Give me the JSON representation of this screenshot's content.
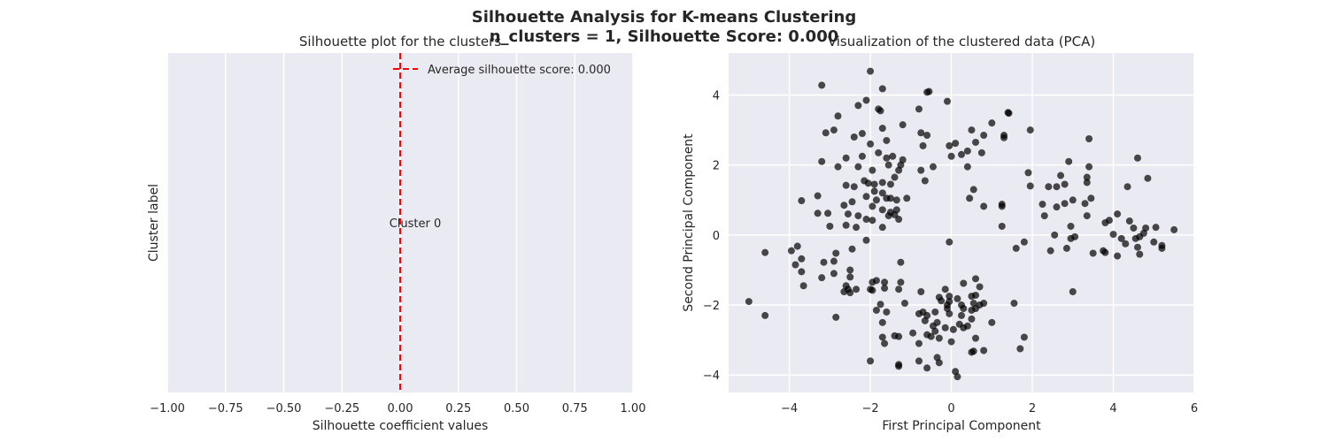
{
  "suptitle": {
    "line1": "Silhouette Analysis for K-means Clustering",
    "line2": "n_clusters = 1, Silhouette Score: 0.000"
  },
  "colors": {
    "plot_background": "#eaeaf2",
    "grid": "#ffffff",
    "average_line": "#ff0000",
    "points": "#000000"
  },
  "chart_data": [
    {
      "type": "bar",
      "title": "Silhouette plot for the clusters",
      "xlabel": "Silhouette coefficient values",
      "ylabel": "Cluster label",
      "xlim": [
        -1.0,
        1.0
      ],
      "xticks": [
        -1.0,
        -0.75,
        -0.5,
        -0.25,
        0.0,
        0.25,
        0.5,
        0.75,
        1.0
      ],
      "xtick_labels": [
        "−1.00",
        "−0.75",
        "−0.50",
        "−0.25",
        "0.00",
        "0.25",
        "0.50",
        "0.75",
        "1.00"
      ],
      "yticks": [],
      "grid": true,
      "clusters": [
        {
          "label": "Cluster 0",
          "silhouette_values": 0.0
        }
      ],
      "average_line": {
        "value": 0.0,
        "style": "dashed",
        "legend_label": "Average silhouette score: 0.000"
      },
      "legend_position": "top-right"
    },
    {
      "type": "scatter",
      "title": "Visualization of the clustered data (PCA)",
      "xlabel": "First Principal Component",
      "ylabel": "Second Principal Component",
      "xlim": [
        -5.5,
        6.0
      ],
      "ylim": [
        -4.5,
        5.2
      ],
      "xticks": [
        -4,
        -2,
        0,
        2,
        4,
        6
      ],
      "xtick_labels": [
        "−4",
        "−2",
        "0",
        "2",
        "4",
        "6"
      ],
      "yticks": [
        -4,
        -2,
        0,
        2,
        4
      ],
      "ytick_labels": [
        "−4",
        "−2",
        "0",
        "2",
        "4"
      ],
      "grid": true,
      "points": [
        [
          -3.2,
          4.28
        ],
        [
          -2.0,
          4.68
        ],
        [
          -1.7,
          4.18
        ],
        [
          -0.6,
          4.08
        ],
        [
          -0.55,
          4.1
        ],
        [
          -0.1,
          3.82
        ],
        [
          -2.1,
          3.85
        ],
        [
          -1.8,
          3.6
        ],
        [
          -1.75,
          3.55
        ],
        [
          -2.3,
          3.7
        ],
        [
          -2.8,
          3.4
        ],
        [
          -0.8,
          3.6
        ],
        [
          1.4,
          3.5
        ],
        [
          1.42,
          3.48
        ],
        [
          1.0,
          3.2
        ],
        [
          -1.2,
          3.15
        ],
        [
          -3.1,
          2.92
        ],
        [
          -2.9,
          3.0
        ],
        [
          -2.4,
          2.8
        ],
        [
          -2.2,
          2.9
        ],
        [
          -1.7,
          3.05
        ],
        [
          -0.75,
          2.92
        ],
        [
          -0.6,
          2.85
        ],
        [
          0.5,
          3.0
        ],
        [
          0.8,
          2.85
        ],
        [
          1.3,
          2.85
        ],
        [
          1.3,
          2.78
        ],
        [
          1.95,
          3.0
        ],
        [
          3.4,
          2.75
        ],
        [
          -2.0,
          2.6
        ],
        [
          -1.6,
          2.7
        ],
        [
          -0.7,
          2.55
        ],
        [
          -0.05,
          2.55
        ],
        [
          0.1,
          2.62
        ],
        [
          0.6,
          2.65
        ],
        [
          0.4,
          2.4
        ],
        [
          0.75,
          2.35
        ],
        [
          -3.2,
          2.1
        ],
        [
          -2.6,
          2.2
        ],
        [
          -2.2,
          2.25
        ],
        [
          -1.8,
          2.35
        ],
        [
          -1.6,
          2.2
        ],
        [
          -1.45,
          2.25
        ],
        [
          -1.2,
          2.15
        ],
        [
          0.0,
          2.25
        ],
        [
          0.25,
          2.3
        ],
        [
          4.6,
          2.2
        ],
        [
          -2.8,
          1.95
        ],
        [
          -2.3,
          1.95
        ],
        [
          -1.95,
          1.85
        ],
        [
          -1.55,
          2.0
        ],
        [
          -1.3,
          1.85
        ],
        [
          -1.4,
          1.65
        ],
        [
          -0.75,
          1.85
        ],
        [
          -0.45,
          1.95
        ],
        [
          0.4,
          1.95
        ],
        [
          2.9,
          2.1
        ],
        [
          3.4,
          1.95
        ],
        [
          1.9,
          1.78
        ],
        [
          2.7,
          1.7
        ],
        [
          3.35,
          1.65
        ],
        [
          4.85,
          1.62
        ],
        [
          -2.6,
          1.42
        ],
        [
          -2.4,
          1.38
        ],
        [
          -2.05,
          1.48
        ],
        [
          -1.9,
          1.45
        ],
        [
          -1.7,
          1.5
        ],
        [
          -1.5,
          1.45
        ],
        [
          -0.65,
          1.55
        ],
        [
          0.55,
          1.3
        ],
        [
          1.95,
          1.4
        ],
        [
          2.4,
          1.38
        ],
        [
          2.6,
          1.38
        ],
        [
          2.8,
          1.45
        ],
        [
          3.35,
          1.5
        ],
        [
          4.35,
          1.38
        ],
        [
          -3.3,
          1.12
        ],
        [
          -2.1,
          1.1
        ],
        [
          -1.85,
          1.0
        ],
        [
          -1.7,
          1.2
        ],
        [
          -1.6,
          1.05
        ],
        [
          -1.5,
          1.05
        ],
        [
          -1.35,
          1.0
        ],
        [
          -1.1,
          1.05
        ],
        [
          0.45,
          1.05
        ],
        [
          3.0,
          1.0
        ],
        [
          3.45,
          1.05
        ],
        [
          -3.7,
          0.98
        ],
        [
          -2.65,
          0.85
        ],
        [
          -2.45,
          0.95
        ],
        [
          -1.95,
          0.82
        ],
        [
          -1.7,
          0.72
        ],
        [
          -1.5,
          0.65
        ],
        [
          -1.35,
          0.72
        ],
        [
          0.8,
          0.82
        ],
        [
          1.25,
          0.82
        ],
        [
          1.25,
          0.88
        ],
        [
          2.25,
          0.88
        ],
        [
          2.6,
          0.8
        ],
        [
          2.8,
          0.9
        ],
        [
          3.3,
          0.9
        ],
        [
          -3.3,
          0.62
        ],
        [
          -3.05,
          0.62
        ],
        [
          -2.1,
          0.45
        ],
        [
          -1.95,
          0.42
        ],
        [
          -1.55,
          0.55
        ],
        [
          -1.4,
          0.58
        ],
        [
          -1.3,
          0.45
        ],
        [
          2.3,
          0.55
        ],
        [
          3.35,
          0.55
        ],
        [
          3.9,
          0.42
        ],
        [
          4.1,
          0.6
        ],
        [
          4.4,
          0.4
        ],
        [
          -3.0,
          0.25
        ],
        [
          -2.6,
          0.28
        ],
        [
          -2.35,
          0.22
        ],
        [
          -1.7,
          0.22
        ],
        [
          1.25,
          0.25
        ],
        [
          2.95,
          0.25
        ],
        [
          3.8,
          0.35
        ],
        [
          4.5,
          0.2
        ],
        [
          4.8,
          0.2
        ],
        [
          5.05,
          0.22
        ],
        [
          5.5,
          0.15
        ],
        [
          -2.1,
          -0.15
        ],
        [
          -0.05,
          -0.2
        ],
        [
          2.55,
          0.0
        ],
        [
          2.95,
          -0.1
        ],
        [
          3.05,
          -0.05
        ],
        [
          4.0,
          0.02
        ],
        [
          4.2,
          -0.1
        ],
        [
          4.3,
          -0.25
        ],
        [
          4.55,
          -0.1
        ],
        [
          4.65,
          -0.05
        ],
        [
          4.75,
          0.05
        ],
        [
          5.0,
          -0.2
        ],
        [
          5.2,
          -0.3
        ],
        [
          -2.45,
          -0.4
        ],
        [
          1.6,
          -0.38
        ],
        [
          1.8,
          -0.2
        ],
        [
          2.45,
          -0.45
        ],
        [
          2.85,
          -0.38
        ],
        [
          3.5,
          -0.52
        ],
        [
          3.75,
          -0.45
        ],
        [
          3.8,
          -0.5
        ],
        [
          4.1,
          -0.6
        ],
        [
          4.6,
          -0.35
        ],
        [
          4.65,
          -0.55
        ],
        [
          5.2,
          -0.38
        ],
        [
          -4.6,
          -0.5
        ],
        [
          -3.95,
          -0.45
        ],
        [
          -3.8,
          -0.32
        ],
        [
          -3.7,
          -0.68
        ],
        [
          -2.85,
          -0.52
        ],
        [
          -3.85,
          -0.85
        ],
        [
          -3.15,
          -0.78
        ],
        [
          -2.9,
          -0.75
        ],
        [
          -1.25,
          -0.78
        ],
        [
          -3.7,
          -1.05
        ],
        [
          -2.5,
          -1.0
        ],
        [
          -2.9,
          -1.1
        ],
        [
          -2.5,
          -1.2
        ],
        [
          -3.2,
          -1.22
        ],
        [
          -1.65,
          -1.35
        ],
        [
          -1.95,
          -1.35
        ],
        [
          -1.85,
          -1.3
        ],
        [
          -1.25,
          -1.35
        ],
        [
          -0.15,
          -1.55
        ],
        [
          0.3,
          -1.38
        ],
        [
          0.6,
          -1.25
        ],
        [
          -3.65,
          -1.45
        ],
        [
          -2.6,
          -1.45
        ],
        [
          -2.55,
          -1.55
        ],
        [
          -2.35,
          -1.55
        ],
        [
          -2.5,
          -1.65
        ],
        [
          -2.65,
          -1.62
        ],
        [
          -2.0,
          -1.55
        ],
        [
          -1.95,
          -1.58
        ],
        [
          -1.65,
          -1.52
        ],
        [
          -1.3,
          -1.55
        ],
        [
          -0.75,
          -1.62
        ],
        [
          0.5,
          -1.75
        ],
        [
          0.7,
          -1.48
        ],
        [
          0.6,
          -1.72
        ],
        [
          -0.05,
          -1.75
        ],
        [
          -0.3,
          -1.78
        ],
        [
          -0.25,
          -1.88
        ],
        [
          0.15,
          -1.82
        ],
        [
          0.25,
          -2.0
        ],
        [
          3.0,
          -1.62
        ],
        [
          -5.0,
          -1.9
        ],
        [
          -1.75,
          -1.98
        ],
        [
          -1.15,
          -1.95
        ],
        [
          -0.05,
          -1.9
        ],
        [
          -0.1,
          -2.0
        ],
        [
          0.5,
          -2.15
        ],
        [
          0.55,
          -1.95
        ],
        [
          0.7,
          -2.0
        ],
        [
          0.8,
          -1.95
        ],
        [
          1.55,
          -1.95
        ],
        [
          -0.8,
          -2.25
        ],
        [
          -0.7,
          -2.2
        ],
        [
          -0.4,
          -2.2
        ],
        [
          -0.6,
          -2.3
        ],
        [
          -0.1,
          -2.1
        ],
        [
          -0.05,
          -2.25
        ],
        [
          0.3,
          -2.1
        ],
        [
          0.6,
          -2.1
        ],
        [
          -1.85,
          -2.15
        ],
        [
          -1.6,
          -2.2
        ],
        [
          -4.6,
          -2.3
        ],
        [
          -2.85,
          -2.35
        ],
        [
          -1.7,
          -2.5
        ],
        [
          -0.35,
          -2.5
        ],
        [
          -0.65,
          -2.45
        ],
        [
          0.4,
          -2.6
        ],
        [
          0.5,
          -2.4
        ],
        [
          1.0,
          -2.5
        ],
        [
          -0.95,
          -2.8
        ],
        [
          -0.45,
          -2.6
        ],
        [
          -0.4,
          -2.75
        ],
        [
          -0.6,
          -2.85
        ],
        [
          -0.3,
          -2.95
        ],
        [
          0.05,
          -2.7
        ],
        [
          0.2,
          -2.55
        ],
        [
          0.3,
          -2.65
        ],
        [
          -0.5,
          -2.9
        ],
        [
          -1.4,
          -2.88
        ],
        [
          -1.3,
          -2.9
        ],
        [
          -1.7,
          -2.92
        ],
        [
          0.6,
          -2.95
        ],
        [
          1.8,
          -2.92
        ],
        [
          -1.65,
          -3.1
        ],
        [
          -0.8,
          -3.1
        ],
        [
          0.0,
          -3.05
        ],
        [
          0.5,
          -3.35
        ],
        [
          0.55,
          -3.32
        ],
        [
          0.8,
          -3.3
        ],
        [
          1.7,
          -3.25
        ],
        [
          -0.8,
          -3.6
        ],
        [
          -0.6,
          -3.8
        ],
        [
          -0.3,
          -3.65
        ],
        [
          -1.3,
          -3.7
        ],
        [
          -1.3,
          -3.75
        ],
        [
          -2.0,
          -3.6
        ],
        [
          0.1,
          -3.9
        ],
        [
          0.15,
          -4.05
        ],
        [
          -0.35,
          -3.5
        ],
        [
          -0.15,
          -2.65
        ],
        [
          0.25,
          -2.3
        ],
        [
          -2.15,
          1.55
        ],
        [
          -2.3,
          0.55
        ],
        [
          -1.9,
          1.25
        ],
        [
          -1.25,
          2.0
        ],
        [
          -2.55,
          0.6
        ]
      ]
    }
  ]
}
